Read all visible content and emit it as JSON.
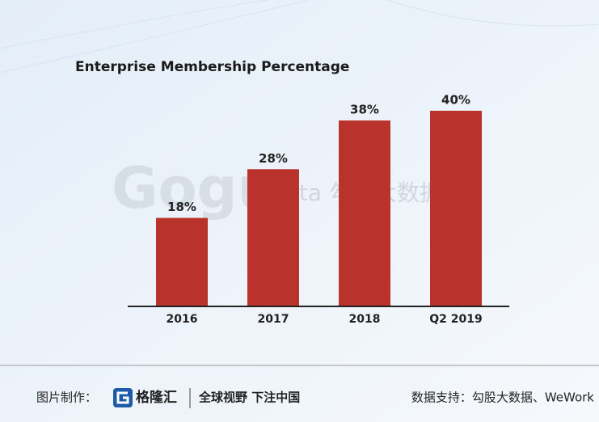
{
  "chart_data": {
    "type": "bar",
    "title": "Enterprise Membership Percentage",
    "categories": [
      "2016",
      "2017",
      "2018",
      "Q2 2019"
    ],
    "values": [
      18,
      28,
      38,
      40
    ],
    "value_labels": [
      "18%",
      "28%",
      "38%",
      "40%"
    ],
    "color": "#b9322b"
  },
  "watermark": {
    "logo": "Gogu",
    "text": "data 勾股大数据"
  },
  "footer": {
    "made_by_label": "图片制作：",
    "brand": "格隆汇",
    "slogan": "全球视野 下注中国",
    "source": "数据支持：勾股大数据、WeWork"
  }
}
